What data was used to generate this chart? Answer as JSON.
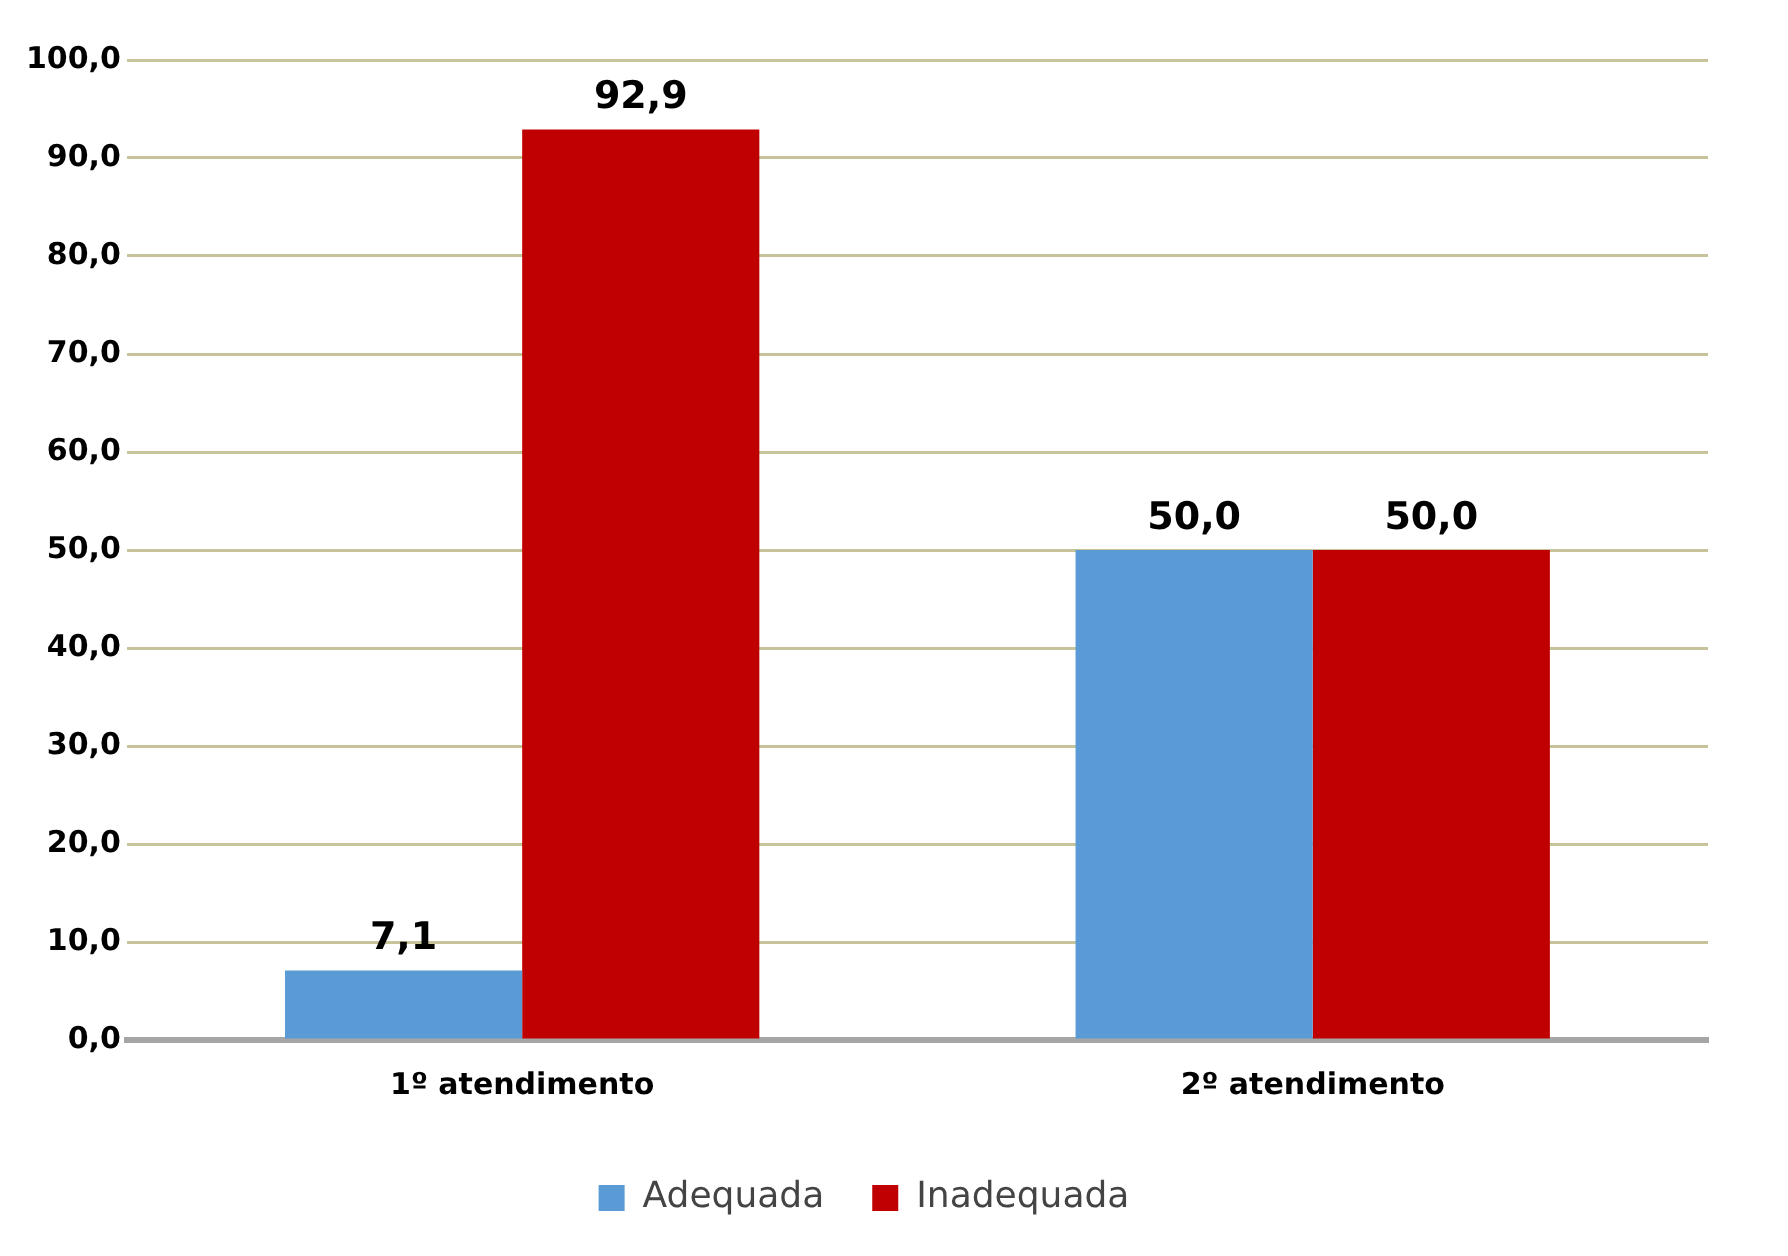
{
  "chart_data": {
    "type": "bar",
    "categories": [
      "1º atendimento",
      "2º atendimento"
    ],
    "series": [
      {
        "name": "Adequada",
        "color": "#5b9bd5",
        "values": [
          7.1,
          50.0
        ],
        "value_labels": [
          "7,1",
          "50,0"
        ]
      },
      {
        "name": "Inadequada",
        "color": "#c00000",
        "values": [
          92.9,
          50.0
        ],
        "value_labels": [
          "92,9",
          "50,0"
        ]
      }
    ],
    "ylim": [
      0,
      100
    ],
    "yticks": [
      {
        "value": 0,
        "label": "0,0"
      },
      {
        "value": 10,
        "label": "10,0"
      },
      {
        "value": 20,
        "label": "20,0"
      },
      {
        "value": 30,
        "label": "30,0"
      },
      {
        "value": 40,
        "label": "40,0"
      },
      {
        "value": 50,
        "label": "50,0"
      },
      {
        "value": 60,
        "label": "60,0"
      },
      {
        "value": 70,
        "label": "70,0"
      },
      {
        "value": 80,
        "label": "80,0"
      },
      {
        "value": 90,
        "label": "90,0"
      },
      {
        "value": 100,
        "label": "100,0"
      }
    ],
    "grid": "y",
    "legend": "bottom"
  }
}
